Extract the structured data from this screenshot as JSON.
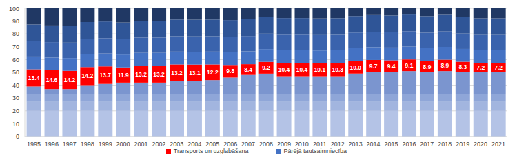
{
  "chart_data": {
    "type": "bar",
    "stacked": true,
    "grid": true,
    "legend": "bottom",
    "categories": [
      "1995",
      "1996",
      "1997",
      "1998",
      "1999",
      "2000",
      "2001",
      "2002",
      "2003",
      "2004",
      "2005",
      "2006",
      "2007",
      "2008",
      "2009",
      "2010",
      "2011",
      "2012",
      "2013",
      "2014",
      "2015",
      "2016",
      "2017",
      "2018",
      "2019",
      "2020",
      "2021"
    ],
    "ylim": [
      0,
      100
    ],
    "yticks": [
      0,
      10,
      20,
      30,
      40,
      50,
      60,
      70,
      80,
      90,
      100
    ],
    "series": [
      {
        "name": null,
        "color": "#b4c3e6",
        "values": [
          20,
          20,
          20,
          20,
          20,
          20,
          20,
          20,
          20,
          20,
          20,
          20,
          20,
          20,
          20,
          20,
          20,
          20,
          20,
          20,
          20,
          20,
          20,
          20,
          20,
          20,
          20
        ]
      },
      {
        "name": null,
        "color": "#a2b5df",
        "values": [
          7,
          7,
          7,
          7,
          7,
          7,
          7,
          7,
          7,
          7,
          7,
          7,
          7,
          7,
          7,
          7,
          7,
          7,
          7,
          7,
          7,
          7,
          7,
          7,
          7,
          7,
          7
        ]
      },
      {
        "name": null,
        "color": "#8fa6d8",
        "values": [
          6,
          6,
          6,
          6,
          6,
          6,
          6,
          6,
          6,
          6,
          6,
          6,
          6,
          6,
          6,
          6,
          6,
          6,
          6,
          6,
          6,
          6,
          6,
          6,
          6,
          6,
          6
        ]
      },
      {
        "name": null,
        "color": "#7b95cf",
        "values": [
          6,
          4,
          4,
          7,
          8,
          9,
          9,
          9,
          10,
          10,
          11,
          13,
          15,
          16,
          14,
          14,
          14,
          14,
          16,
          17,
          17,
          18,
          17,
          18,
          17,
          17,
          17
        ]
      },
      {
        "name": "Transports un uzglabāšana",
        "color": "#ff0000",
        "data_labels": true,
        "values": [
          13.4,
          14.6,
          14.2,
          14.2,
          13.7,
          11.9,
          13.2,
          13.2,
          13.2,
          13.1,
          12.2,
          9.8,
          8.4,
          9.2,
          10.4,
          10.4,
          10.1,
          10.3,
          10.0,
          9.7,
          9.4,
          9.1,
          8.9,
          8.9,
          8.3,
          7.2,
          7.2
        ],
        "value_labels": [
          "13.4",
          "14.6",
          "14.2",
          "14.2",
          "13.7",
          "11.9",
          "13.2",
          "13.2",
          "13.2",
          "13.1",
          "12.2",
          "9.8",
          "8.4",
          "9.2",
          "10.4",
          "10.4",
          "10.1",
          "10.3",
          "10.0",
          "9.7",
          "9.4",
          "9.1",
          "8.9",
          "8.9",
          "8.3",
          "7.2",
          "7.2"
        ]
      },
      {
        "name": "Pārējā tautsaimniecība",
        "color": "#4472c4",
        "values": [
          10,
          10,
          10,
          10,
          10,
          10,
          10,
          10,
          10,
          10,
          10,
          10,
          10,
          10,
          10,
          10,
          10,
          10,
          10,
          10,
          10,
          10,
          10,
          10,
          10,
          10,
          10
        ]
      },
      {
        "name": null,
        "color": "#3a63ad",
        "values": [
          12,
          12,
          12,
          12,
          12,
          12,
          12,
          12,
          12,
          12,
          12,
          12,
          12,
          12,
          12,
          12,
          12,
          12,
          12,
          12,
          12,
          12,
          12,
          12,
          12,
          12,
          12
        ]
      },
      {
        "name": null,
        "color": "#2f5597",
        "values": [
          13,
          13,
          13,
          13,
          13,
          13,
          13,
          13,
          13,
          13,
          13,
          13,
          13,
          13,
          13,
          13,
          13,
          13,
          13,
          13,
          13,
          13,
          13,
          13,
          13,
          13,
          13
        ]
      },
      {
        "name": null,
        "color": "#203864",
        "values": [
          12.6,
          13.4,
          13.8,
          10.8,
          10.3,
          11.1,
          9.8,
          9.8,
          8.8,
          8.9,
          8.8,
          9.2,
          8.6,
          6.8,
          7.6,
          7.6,
          7.9,
          7.7,
          6.0,
          5.3,
          5.6,
          4.9,
          6.1,
          5.1,
          6.7,
          7.8,
          7.8
        ]
      }
    ]
  }
}
